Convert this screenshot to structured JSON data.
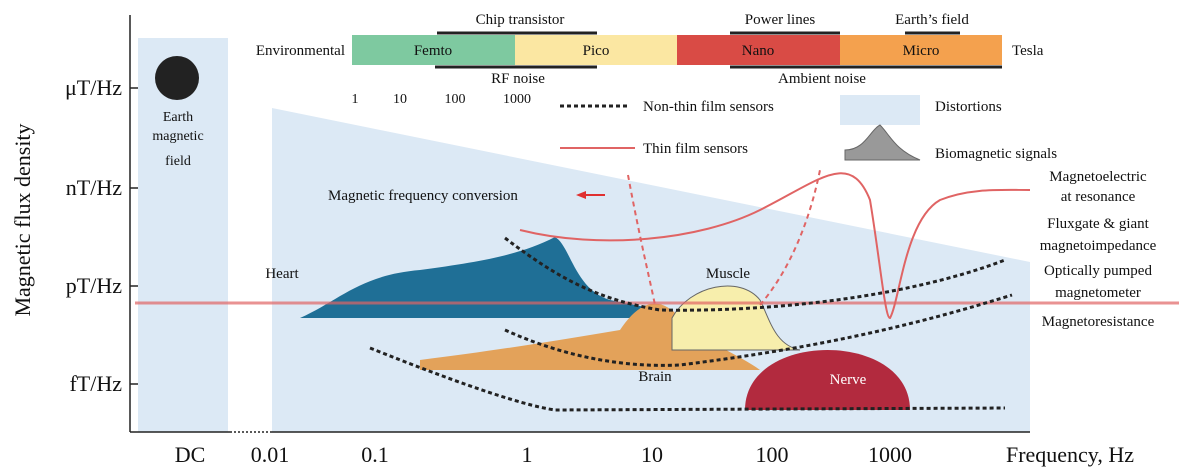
{
  "axes": {
    "y_title": "Magnetic flux density",
    "y_ticks": [
      "μT/Hz",
      "nT/Hz",
      "pT/Hz",
      "fT/Hz"
    ],
    "x_ticks": [
      "DC",
      "0.01",
      "0.1",
      "1",
      "10",
      "100",
      "1000"
    ],
    "x_title": "Frequency, Hz"
  },
  "scale_bar": {
    "left": "Environmental",
    "right": "Tesla",
    "bands": [
      "Femto",
      "Pico",
      "Nano",
      "Micro"
    ],
    "above": [
      "Chip transistor",
      "Power lines",
      "Earth’s field"
    ],
    "below": [
      "RF noise",
      "Ambient noise"
    ],
    "numbers": [
      "1",
      "10",
      "100",
      "1000"
    ]
  },
  "legend": [
    "Non-thin film sensors",
    "Distortions",
    "Thin film sensors",
    "Biomagnetic signals"
  ],
  "labels": {
    "earth": [
      "Earth",
      "magnetic",
      "field"
    ],
    "conversion": "Magnetic frequency conversion",
    "heart": "Heart",
    "muscle": "Muscle",
    "brain": "Brain",
    "nerve": "Nerve"
  },
  "sensors": [
    [
      "Magnetoelectric",
      "at resonance"
    ],
    [
      "Fluxgate & giant",
      "magnetoimpedance"
    ],
    [
      "Optically pumped",
      "magnetometer"
    ],
    [
      "Magnetoresistance"
    ]
  ]
}
